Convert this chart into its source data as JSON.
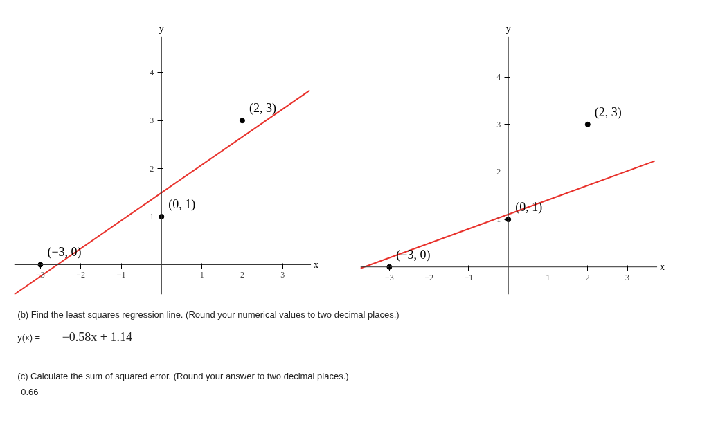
{
  "chart_data": [
    {
      "type": "scatter",
      "xlabel": "x",
      "ylabel": "y",
      "xlim": [
        -3.65,
        3.7
      ],
      "ylim": [
        -0.62,
        4.75
      ],
      "xticks": [
        -3,
        -2,
        -1,
        1,
        2,
        3
      ],
      "yticks": [
        1,
        2,
        3,
        4
      ],
      "series": [
        {
          "type": "line",
          "color": "#e8302a",
          "x": [
            -3.65,
            3.67
          ],
          "values": [
            -0.62,
            3.63
          ]
        },
        {
          "type": "scatter",
          "color": "#000000",
          "marker": "circle",
          "x": [
            -3,
            0,
            2
          ],
          "values": [
            0,
            1,
            3
          ]
        }
      ],
      "annotations": [
        {
          "text": "(−3, 0)",
          "x": -3,
          "y": 0
        },
        {
          "text": "(0, 1)",
          "x": 0,
          "y": 1
        },
        {
          "text": "(2, 3)",
          "x": 2,
          "y": 3
        }
      ]
    },
    {
      "type": "scatter",
      "xlabel": "x",
      "ylabel": "y",
      "xlim": [
        -3.73,
        3.75
      ],
      "ylim": [
        -0.58,
        4.85
      ],
      "xticks": [
        -3,
        -2,
        -1,
        1,
        2,
        3
      ],
      "yticks": [
        1,
        2,
        3,
        4
      ],
      "series": [
        {
          "type": "line",
          "color": "#e8302a",
          "x": [
            -3.73,
            3.69
          ],
          "values": [
            -0.03,
            2.23
          ]
        },
        {
          "type": "scatter",
          "color": "#000000",
          "marker": "circle",
          "x": [
            -3,
            0,
            2
          ],
          "values": [
            0,
            1,
            3
          ]
        }
      ],
      "annotations": [
        {
          "text": "(−3, 0)",
          "x": -3,
          "y": 0
        },
        {
          "text": "(0, 1)",
          "x": 0,
          "y": 1
        },
        {
          "text": "(2, 3)",
          "x": 2,
          "y": 3
        }
      ]
    },
    {
      "type": "other",
      "annotations": [
        "(b) Find the least squares regression line. (Round your numerical values to two decimal places.)",
        "y(x) =",
        "−0.58x + 1.14",
        "(c) Calculate the sum of squared error. (Round your answer to two decimal places.)",
        "0.66"
      ]
    }
  ]
}
